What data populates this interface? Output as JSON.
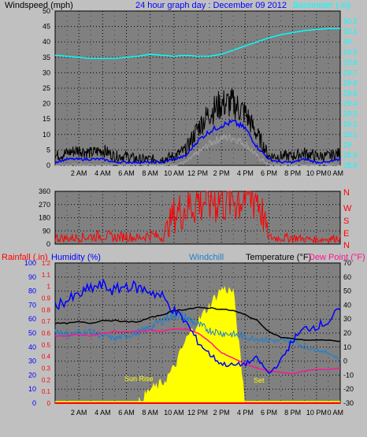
{
  "colors": {
    "background": "#c0c0c0",
    "plot_bg": "#808080",
    "grid": "#000000",
    "wind_speed": "#000000",
    "wind_avg": "#0000ff",
    "wind_low": "#a0a0a0",
    "barometer": "#00ffff",
    "direction": "#ff0000",
    "rainfall": "#ff0000",
    "humidity": "#0000ff",
    "windchill": "#1e7fd0",
    "temperature": "#000000",
    "dew_point": "#ff1493",
    "solar": "#ffff00"
  },
  "top": {
    "left_title": "Windspeed (mph)",
    "center_title": "24 hour graph day : December 09 2012",
    "right_title": "Barometer (.in)"
  },
  "x_ticks": [
    "2 AM",
    "4 AM",
    "6 AM",
    "8 AM",
    "10 AM",
    "12 PM",
    "2 PM",
    "4 PM",
    "6 PM",
    "8 PM",
    "10 PM",
    "0 AM"
  ],
  "chart_data": [
    {
      "type": "line",
      "title": "Windspeed (mph)",
      "ylabel": "Windspeed (mph)",
      "y2label": "Barometer (.in)",
      "ylim": [
        0,
        50
      ],
      "y2lim": [
        28.8,
        30.3
      ],
      "y_ticks": [
        "0",
        "5",
        "10",
        "15",
        "20",
        "25",
        "30",
        "35",
        "40",
        "45",
        "50"
      ],
      "y2_ticks": [
        "28.8",
        "28.9",
        "29",
        "29.1",
        "29.2",
        "29.3",
        "29.4",
        "29.5",
        "29.6",
        "29.7",
        "29.8",
        "29.9",
        "30",
        "30.1",
        "30.2"
      ],
      "x_hours": [
        0,
        1,
        2,
        3,
        4,
        5,
        6,
        7,
        8,
        9,
        10,
        11,
        12,
        13,
        14,
        15,
        16,
        17,
        18,
        19,
        20,
        21,
        22,
        23,
        24
      ],
      "series": [
        {
          "name": "Windspeed",
          "values": [
            3,
            4,
            5,
            4,
            5,
            3,
            3,
            2,
            2,
            2,
            3,
            5,
            12,
            17,
            20,
            20,
            17,
            10,
            3,
            3,
            3,
            4,
            3,
            3,
            4
          ]
        },
        {
          "name": "Average",
          "values": [
            1,
            2,
            2,
            2,
            2,
            1,
            1,
            1,
            1,
            1,
            2,
            3,
            8,
            11,
            13,
            14,
            12,
            6,
            2,
            1,
            1,
            2,
            1,
            1,
            2
          ]
        },
        {
          "name": "Low",
          "values": [
            0,
            0,
            0,
            0,
            0,
            0,
            0,
            0,
            0,
            0,
            0,
            1,
            4,
            7,
            9,
            9,
            7,
            3,
            0,
            0,
            0,
            0,
            0,
            0,
            0
          ]
        },
        {
          "name": "Barometer",
          "values": [
            29.87,
            29.86,
            29.85,
            29.84,
            29.84,
            29.84,
            29.85,
            29.86,
            29.88,
            29.87,
            29.86,
            29.87,
            29.86,
            29.86,
            29.88,
            29.92,
            29.96,
            30.0,
            30.04,
            30.07,
            30.09,
            30.11,
            30.12,
            30.13,
            30.13
          ]
        }
      ]
    },
    {
      "type": "line",
      "title": "Wind Direction",
      "ylim": [
        0,
        360
      ],
      "y_ticks": [
        "0",
        "90",
        "180",
        "270",
        "360"
      ],
      "y2_ticks": [
        "N",
        "E",
        "S",
        "W",
        "N"
      ],
      "x_hours": [
        0,
        1,
        2,
        3,
        4,
        5,
        6,
        7,
        8,
        9,
        10,
        11,
        12,
        13,
        14,
        15,
        16,
        17,
        18,
        19,
        20,
        21,
        22,
        23,
        24
      ],
      "series": [
        {
          "name": "Direction",
          "values": [
            45,
            40,
            45,
            50,
            60,
            45,
            55,
            40,
            65,
            45,
            200,
            250,
            300,
            310,
            320,
            320,
            330,
            340,
            45,
            40,
            45,
            35,
            30,
            35,
            45
          ]
        }
      ]
    },
    {
      "type": "line",
      "title": "Temperature (°F)",
      "ylabel": "Rainfall (.in)",
      "ylim": [
        0,
        100
      ],
      "y2lim": [
        -30,
        70
      ],
      "y_ticks": [
        "0",
        "10",
        "20",
        "30",
        "40",
        "50",
        "60",
        "70",
        "80",
        "90",
        "100"
      ],
      "y2_ticks": [
        "-30",
        "-20",
        "-10",
        "0",
        "10",
        "20",
        "30",
        "40",
        "50",
        "60",
        "70"
      ],
      "rain_ticks": [
        "0",
        "0.1",
        "0.2",
        "0.3",
        "0.4",
        "0.5",
        "0.6",
        "0.7",
        "0.8",
        "0.9",
        "1",
        "1.1",
        "1.2"
      ],
      "annotations": [
        "Sun Rise",
        "Set"
      ],
      "x_hours": [
        0,
        1,
        2,
        3,
        4,
        5,
        6,
        7,
        8,
        9,
        10,
        11,
        12,
        13,
        14,
        15,
        16,
        17,
        18,
        19,
        20,
        21,
        22,
        23,
        24
      ],
      "series": [
        {
          "name": "Humidity",
          "values": [
            70,
            73,
            77,
            82,
            84,
            80,
            84,
            82,
            80,
            76,
            66,
            58,
            44,
            35,
            28,
            27,
            28,
            32,
            21,
            30,
            45,
            53,
            55,
            58,
            67
          ]
        },
        {
          "name": "Windchill",
          "values": [
            22,
            19,
            20,
            21,
            18,
            16,
            18,
            20,
            24,
            29,
            33,
            31,
            26,
            22,
            20,
            19,
            17,
            16,
            15,
            14,
            15,
            10,
            8,
            6,
            1
          ]
        },
        {
          "name": "Temperature",
          "values": [
            27,
            27,
            28,
            27,
            29,
            29,
            28,
            28,
            31,
            33,
            36,
            37,
            38,
            38,
            37,
            36,
            33,
            29,
            21,
            17,
            16,
            15,
            15,
            15,
            14
          ]
        },
        {
          "name": "Dew Point",
          "values": [
            18,
            18,
            19,
            18,
            20,
            21,
            21,
            21,
            22,
            21,
            23,
            23,
            20,
            14,
            6,
            2,
            -2,
            -5,
            -7,
            -8,
            -9,
            -7,
            -6,
            -6,
            -5
          ]
        },
        {
          "name": "Solar",
          "values": [
            0,
            0,
            0,
            0,
            0,
            0,
            0,
            0,
            10,
            14,
            25,
            45,
            58,
            70,
            82,
            80,
            0,
            0,
            0,
            0,
            0,
            0,
            0,
            0,
            0
          ]
        },
        {
          "name": "Rainfall",
          "values": [
            0,
            0,
            0,
            0,
            0,
            0,
            0,
            0,
            0,
            0,
            0,
            0,
            0,
            0,
            0,
            0,
            0,
            0,
            0,
            0,
            0,
            0,
            0,
            0,
            0
          ]
        }
      ]
    }
  ],
  "panel2": {
    "dir_labels": [
      "N",
      "W",
      "S",
      "E",
      "N"
    ]
  },
  "panel3": {
    "labels": {
      "rainfall": "Rainfall (.in)",
      "humidity": "Humidity (%)",
      "windchill": "Windchill",
      "temperature": "Temperature (°F)",
      "dewpoint": "Dew Point (°F)"
    },
    "sunrise": "Sun Rise",
    "sunset": "Set"
  }
}
